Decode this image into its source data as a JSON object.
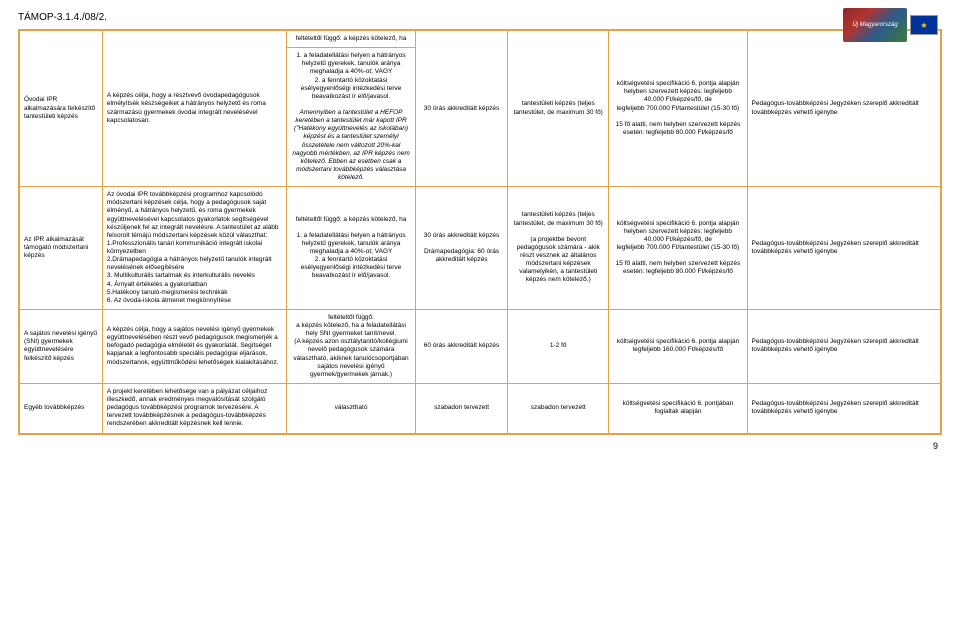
{
  "header_code": "TÁMOP-3.1.4./08/2.",
  "logo_text": "Új Magyarország",
  "page_number": "9",
  "rows": [
    {
      "c3_top": "feltételtől függő: a képzés kötelező, ha"
    },
    {
      "c1": "Óvodai IPR alkalmazására felkészítő tantestületi képzés",
      "c2": "A képzés célja, hogy a résztvevő óvodapedagógusok elmélyítsék készségeiket a hátrányos helyzetű és roma származású gyermekek óvodai integrált nevelésével kapcsolatosan.",
      "c3a": "1. a feladatellátási helyen a hátrányos helyzetű gyerekek, tanulók aránya meghaladja a 40%-ot; VAGY",
      "c3b": "2. a fenntartó közoktatási esélyegyenlőségi intézkedési terve beavatkozást ír elő/javasol.",
      "c3c": "Amennyiben a tantestület a HEFOP keretében a tantestület már kapott IPR (\"Hatékony együttnevelés az iskolában) képzést és a tantestület személyi összetétele nem változott 20%-kal nagyobb mértékben, az IPR képzés nem kötelező.  Ebben az esetben csak a módszertani továbbképzés választása kötelező.",
      "c4": "30 órás akkreditált képzés",
      "c5": "tantestületi képzés (teljes tantestület, de maximum 30 fő)",
      "c6a": "költségvetési specifikáció 6. pontja alapján",
      "c6b": "helyben szervezett képzés: legfeljebb 40.000 Ft/képzés/fő, de",
      "c6c": "legfeljebb 700.000 Ft/tantestület (15-30 fő)",
      "c6d": "15 fő alatti, nem helyben szervezett képzés esetén: legfeljebb 80.000 Ft/képzés/fő",
      "c7": "Pedagógus-továbbképzési Jegyzéken szereplő akkreditált továbbképzés vehető igénybe"
    },
    {
      "c1": "Az IPR alkalmazását támogató módszertani képzés",
      "c2a": "Az óvodai IPR továbbképzési programhoz kapcsolódó módszertani képzések célja, hogy a pedagógusok saját élményű, a hátrányos helyzetű, és roma gyermekek együttnevelésével kapcsolatos gyakorlatok segítségével készüljenek fel az integrált nevelésre.  A tantestület az alább felsorolt témájú módszertani képzések közül választhat:",
      "c2b": "1.Professzionális tanári kommunikáció integrált iskolai környezetben",
      "c2c": "2.Drámapedagógia a hátrányos helyzetű tanulók integrált nevelésének elősegítésére",
      "c2d": "3. Multikulturális tartalmak és interkulturális nevelés",
      "c2e": "4. Árnyalt értékelés a gyakorlatban",
      "c2f": "5.Hatékony tanuló-megismerési technikák",
      "c2g": "6. Az óvoda-iskola átmenet megkönnyítése",
      "c3_top": "feltételtől függő: a képzés kötelező, ha",
      "c3a": "1. a feladatellátási helyen a hátrányos helyzetű gyerekek, tanulók aránya meghaladja a 40%-ot; VAGY",
      "c3b": "2. a fenntartó közoktatási esélyegyenlőségi intézkedési terve beavatkozást ír elő/javasol.",
      "c4a": "30 órás akkreditált képzés",
      "c4b": "Drámapedagógia: 60 órás akkreditált képzés",
      "c5a": "tantestületi képzés (teljes tantestület, de maximum 30 fő)",
      "c5b": "(a projektbe bevont pedagógusok számára - akik részt vesznek az általános módszertani képzések valamelyikén, a tantestületi képzés nem kötelező.)",
      "c6a": "költségvetési specifikáció 6. pontja alapján",
      "c6b": "helyben szervezett képzés: legfeljebb 40.000 Ft/képzés/fő, de",
      "c6c": "legfeljebb 700.000 Ft/tantestület (15-30 fő)",
      "c6d": "15 fő alatti, nem helyben szervezett képzés esetén: legfeljebb 80.000 Ft/képzés/fő",
      "c7": "Pedagógus-továbbképzési Jegyzéken szereplő akkreditált továbbképzés vehető igénybe"
    },
    {
      "c1": "A sajátos nevelési igényű (SNI) gyermekek együttnevelésére felkészítő képzés",
      "c2": "A képzés célja, hogy a sajátos nevelési igényű gyermekek együttnevelésében részt vevő pedagógusok megismerjék a befogadó pedagógia elméletét és gyakorlatát. Segítséget kapjanak a legfontosabb speciális pedagógiai eljárások, módszertanok, együttműködési lehetőségek kialakításához.",
      "c3a": "feltételtől függő:",
      "c3b": "a képzés kötelező, ha a feladatellátási hely SNI gyermeket tanít/nevel.",
      "c3c": "(A képzés azon osztálytanító/kollégiumi nevelő pedagógusok számára választható, akiknek tanulócsoportjában sajátos nevelési igényű gyermek/gyermekek járnak.)",
      "c4": "60 órás akkreditált képzés",
      "c5": "1-2 fő",
      "c6a": "költségvetési specifikáció 6. pontja alapján",
      "c6b": "legfeljebb 160.000 Ft/képzés/fő",
      "c7": "Pedagógus-továbbképzési Jegyzéken szereplő akkreditált továbbképzés vehető igénybe"
    },
    {
      "c1": "Egyéb továbbképzés",
      "c2": "A projekt keretében lehetősége van a pályázat céljaihoz illeszkedő, annak eredményes megvalósítását szolgáló pedagógus továbbképzési programok tervezésére. A tervezett továbbképzésnek a pedagógus-továbbképzés rendszerében akkreditált képzésnek kell lennie.",
      "c3": "választható",
      "c4": "szabadon tervezett",
      "c5": "szabadon tervezett",
      "c6a": "költségvetési specifikáció 6. pontjában",
      "c6b": "foglaltak alapján",
      "c7": "Pedagógus-továbbképzési Jegyzéken szereplő akkreditált továbbképzés vehető igénybe"
    }
  ]
}
